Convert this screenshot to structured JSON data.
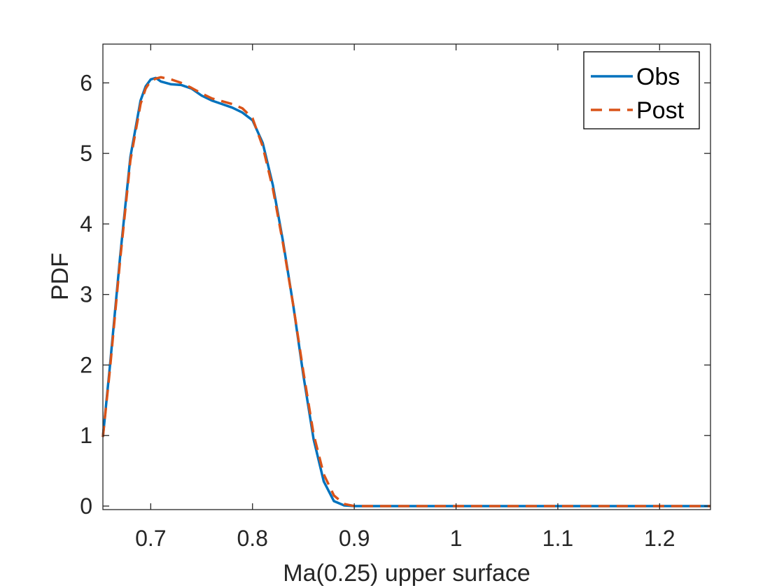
{
  "chart_data": {
    "type": "line",
    "title": "",
    "xlabel": "Ma(0.25) upper surface",
    "ylabel": "PDF",
    "xlim": [
      0.653,
      1.25
    ],
    "ylim": [
      -0.05,
      6.55
    ],
    "xticks": [
      0.7,
      0.8,
      0.9,
      1,
      1.1,
      1.2
    ],
    "xtick_labels": [
      "0.7",
      "0.8",
      "0.9",
      "1",
      "1.1",
      "1.2"
    ],
    "yticks": [
      0,
      1,
      2,
      3,
      4,
      5,
      6
    ],
    "ytick_labels": [
      "0",
      "1",
      "2",
      "3",
      "4",
      "5",
      "6"
    ],
    "grid": false,
    "legend_position": "top-right",
    "series": [
      {
        "name": "Obs",
        "color": "#0072BD",
        "style": "solid",
        "x": [
          0.653,
          0.66,
          0.67,
          0.68,
          0.69,
          0.695,
          0.7,
          0.705,
          0.71,
          0.72,
          0.73,
          0.74,
          0.75,
          0.76,
          0.77,
          0.78,
          0.79,
          0.8,
          0.81,
          0.82,
          0.83,
          0.84,
          0.85,
          0.86,
          0.87,
          0.88,
          0.89,
          0.9,
          0.95,
          1.0,
          1.05,
          1.1,
          1.15,
          1.2,
          1.25
        ],
        "y": [
          0.98,
          2.0,
          3.55,
          4.95,
          5.75,
          5.95,
          6.05,
          6.07,
          6.02,
          5.98,
          5.97,
          5.92,
          5.82,
          5.75,
          5.7,
          5.65,
          5.58,
          5.47,
          5.15,
          4.55,
          3.75,
          2.85,
          1.85,
          0.95,
          0.35,
          0.07,
          0.01,
          0.0,
          0.0,
          0.0,
          0.0,
          0.0,
          0.0,
          0.0,
          0.0
        ]
      },
      {
        "name": "Post",
        "color": "#D95319",
        "style": "dashed",
        "x": [
          0.653,
          0.66,
          0.67,
          0.68,
          0.69,
          0.695,
          0.7,
          0.705,
          0.71,
          0.72,
          0.73,
          0.74,
          0.75,
          0.76,
          0.77,
          0.78,
          0.79,
          0.8,
          0.81,
          0.82,
          0.83,
          0.84,
          0.85,
          0.86,
          0.87,
          0.88,
          0.89,
          0.9,
          0.95,
          1.0,
          1.05,
          1.1,
          1.15,
          1.2,
          1.25
        ],
        "y": [
          0.98,
          1.95,
          3.5,
          4.9,
          5.7,
          5.92,
          6.03,
          6.06,
          6.08,
          6.05,
          6.0,
          5.93,
          5.85,
          5.78,
          5.74,
          5.7,
          5.64,
          5.5,
          5.1,
          4.5,
          3.72,
          2.85,
          1.9,
          1.02,
          0.45,
          0.15,
          0.03,
          0.0,
          0.0,
          0.0,
          0.0,
          0.0,
          0.0,
          0.0,
          0.0
        ]
      }
    ]
  }
}
